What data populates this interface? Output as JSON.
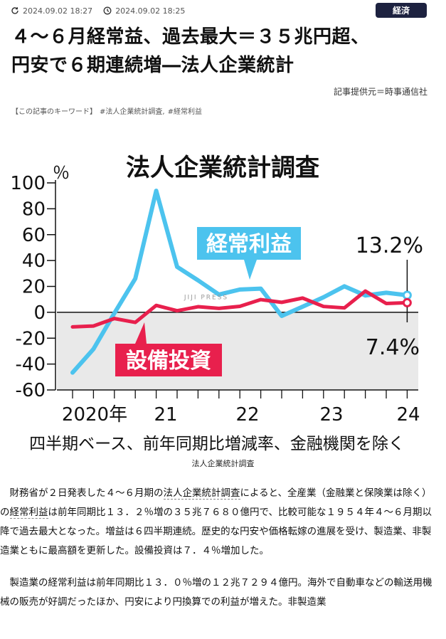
{
  "meta": {
    "published": "2024.09.02 18:27",
    "updated": "2024.09.02 18:25",
    "category": "経済"
  },
  "article": {
    "title_line1": "４～６月経常益、過去最大＝３５兆円超、",
    "title_line2": "円安で６期連続増―法人企業統計",
    "source": "記事提供元＝時事通信社",
    "keywords_label": "【この記事のキーワード】",
    "keywords": [
      "#法人企業統計調査,",
      "#経常利益"
    ],
    "figure_caption": "法人企業統計調査",
    "para1_a": "財務省が２日発表した４～６月期の",
    "para1_link1": "法人企業統計調査",
    "para1_b": "によると、全産業（金融業と保険業は除く）の",
    "para1_link2": "経常利益",
    "para1_c": "は前年同期比１３．２％増の３５兆７６８０億円で、比較可能な１９５４年４～６月期以降で過去最大となった。増益は６四半期連続。歴史的な円安や価格転嫁の進展を受け、製造業、非製造業ともに最高額を更新した。設備投資は７．４％増加した。",
    "para2": "製造業の経常利益は前年同期比１３．０％増の１２兆７２９４億円。海外で自動車などの輸送用機械の販売が好調だったほか、円安により円換算での利益が増えた。非製造業"
  },
  "chart_data": {
    "type": "line",
    "title": "法人企業統計調査",
    "unit_label": "％",
    "subtitle": "四半期ベース、前年同期比増減率、金融機関を除く",
    "watermark": "JIJI PRESS",
    "ylim": [
      -60,
      100
    ],
    "yticks": [
      "100",
      "80",
      "60",
      "40",
      "20",
      "0",
      "-20",
      "-40",
      "-60"
    ],
    "x_year_labels": [
      "2020年",
      "21",
      "22",
      "23",
      "24"
    ],
    "x": [
      "2020Q2",
      "2020Q3",
      "2020Q4",
      "2021Q1",
      "2021Q2",
      "2021Q3",
      "2021Q4",
      "2022Q1",
      "2022Q2",
      "2022Q3",
      "2022Q4",
      "2023Q1",
      "2023Q2",
      "2023Q3",
      "2023Q4",
      "2024Q1",
      "2024Q2"
    ],
    "series": [
      {
        "name": "経常利益",
        "color": "#4cc3ee",
        "values": [
          -46.6,
          -28.4,
          -0.7,
          26.0,
          93.9,
          35.1,
          24.7,
          13.7,
          17.6,
          18.3,
          -2.8,
          4.3,
          11.6,
          20.1,
          13.0,
          15.1,
          13.2
        ]
      },
      {
        "name": "設備投資",
        "color": "#e8204d",
        "values": [
          -11.3,
          -10.6,
          -4.8,
          -7.8,
          5.3,
          1.2,
          4.3,
          3.0,
          4.6,
          9.8,
          7.7,
          11.0,
          4.5,
          3.4,
          16.4,
          6.8,
          7.4
        ]
      }
    ],
    "annotations": {
      "profit_last": "13.2%",
      "capex_last": "7.4%"
    }
  }
}
